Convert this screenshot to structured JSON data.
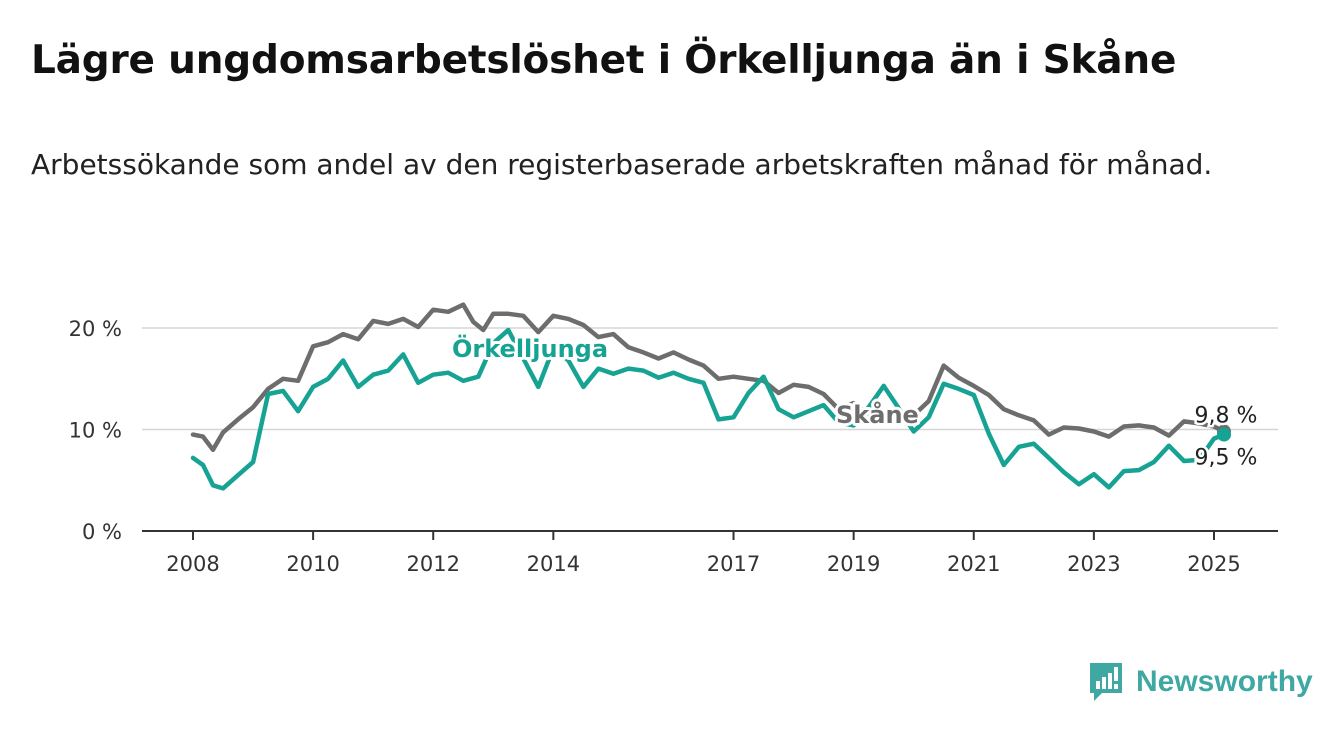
{
  "title": "Lägre ungdomsarbetslöshet i Örkelljunga än i Skåne",
  "subtitle": "Arbetssökande som andel av den registerbaserade arbetskraften månad för månad.",
  "brand": {
    "name": "Newsworthy",
    "icon": "newsworthy-logo-icon",
    "color": "#3fa8a3"
  },
  "chart_data": {
    "type": "line",
    "x_ticks": [
      "2008",
      "2010",
      "2012",
      "2014",
      "2017",
      "2019",
      "2021",
      "2023",
      "2025"
    ],
    "y_ticks": [
      "0 %",
      "10 %",
      "20 %"
    ],
    "ylim": [
      0,
      20
    ],
    "grid": true,
    "series": [
      {
        "name": "Skåne",
        "color": "#6d6d6d",
        "end_label": "9,8 %",
        "points": [
          [
            "2008-01",
            9.5
          ],
          [
            "2008-03",
            9.3
          ],
          [
            "2008-05",
            8.0
          ],
          [
            "2008-07",
            9.7
          ],
          [
            "2008-10",
            11.0
          ],
          [
            "2009-01",
            12.2
          ],
          [
            "2009-04",
            14.0
          ],
          [
            "2009-07",
            15.0
          ],
          [
            "2009-10",
            14.8
          ],
          [
            "2010-01",
            18.2
          ],
          [
            "2010-04",
            18.6
          ],
          [
            "2010-07",
            19.4
          ],
          [
            "2010-10",
            18.9
          ],
          [
            "2011-01",
            20.7
          ],
          [
            "2011-04",
            20.4
          ],
          [
            "2011-07",
            20.9
          ],
          [
            "2011-10",
            20.1
          ],
          [
            "2012-01",
            21.8
          ],
          [
            "2012-04",
            21.6
          ],
          [
            "2012-07",
            22.3
          ],
          [
            "2012-09",
            20.6
          ],
          [
            "2012-11",
            19.8
          ],
          [
            "2013-01",
            21.4
          ],
          [
            "2013-04",
            21.4
          ],
          [
            "2013-07",
            21.2
          ],
          [
            "2013-10",
            19.6
          ],
          [
            "2014-01",
            21.2
          ],
          [
            "2014-04",
            20.9
          ],
          [
            "2014-07",
            20.3
          ],
          [
            "2014-10",
            19.1
          ],
          [
            "2015-01",
            19.4
          ],
          [
            "2015-04",
            18.1
          ],
          [
            "2015-07",
            17.6
          ],
          [
            "2015-10",
            17.0
          ],
          [
            "2016-01",
            17.6
          ],
          [
            "2016-04",
            16.9
          ],
          [
            "2016-07",
            16.3
          ],
          [
            "2016-10",
            15.0
          ],
          [
            "2017-01",
            15.2
          ],
          [
            "2017-04",
            15.0
          ],
          [
            "2017-07",
            14.8
          ],
          [
            "2017-10",
            13.6
          ],
          [
            "2018-01",
            14.4
          ],
          [
            "2018-04",
            14.2
          ],
          [
            "2018-07",
            13.5
          ],
          [
            "2018-10",
            12.0
          ],
          [
            "2019-01",
            12.6
          ],
          [
            "2019-04",
            11.5
          ],
          [
            "2019-07",
            10.7
          ],
          [
            "2019-10",
            10.8
          ],
          [
            "2020-01",
            11.4
          ],
          [
            "2020-04",
            12.8
          ],
          [
            "2020-07",
            16.3
          ],
          [
            "2020-10",
            15.1
          ],
          [
            "2021-01",
            14.3
          ],
          [
            "2021-04",
            13.4
          ],
          [
            "2021-07",
            12.0
          ],
          [
            "2021-10",
            11.4
          ],
          [
            "2022-01",
            10.9
          ],
          [
            "2022-04",
            9.5
          ],
          [
            "2022-07",
            10.2
          ],
          [
            "2022-10",
            10.1
          ],
          [
            "2023-01",
            9.8
          ],
          [
            "2023-04",
            9.3
          ],
          [
            "2023-07",
            10.3
          ],
          [
            "2023-10",
            10.4
          ],
          [
            "2024-01",
            10.2
          ],
          [
            "2024-04",
            9.4
          ],
          [
            "2024-07",
            10.8
          ],
          [
            "2024-10",
            10.6
          ],
          [
            "2025-01",
            10.3
          ],
          [
            "2025-03",
            9.8
          ]
        ]
      },
      {
        "name": "Örkelljunga",
        "color": "#17a394",
        "end_label": "9,5 %",
        "points": [
          [
            "2008-01",
            7.2
          ],
          [
            "2008-03",
            6.5
          ],
          [
            "2008-05",
            4.5
          ],
          [
            "2008-07",
            4.2
          ],
          [
            "2008-10",
            5.5
          ],
          [
            "2009-01",
            6.8
          ],
          [
            "2009-04",
            13.5
          ],
          [
            "2009-07",
            13.8
          ],
          [
            "2009-10",
            11.8
          ],
          [
            "2010-01",
            14.2
          ],
          [
            "2010-04",
            15.0
          ],
          [
            "2010-07",
            16.8
          ],
          [
            "2010-10",
            14.2
          ],
          [
            "2011-01",
            15.4
          ],
          [
            "2011-04",
            15.8
          ],
          [
            "2011-07",
            17.4
          ],
          [
            "2011-10",
            14.6
          ],
          [
            "2012-01",
            15.4
          ],
          [
            "2012-04",
            15.6
          ],
          [
            "2012-07",
            14.8
          ],
          [
            "2012-10",
            15.2
          ],
          [
            "2013-01",
            18.5
          ],
          [
            "2013-04",
            19.8
          ],
          [
            "2013-07",
            17.0
          ],
          [
            "2013-10",
            14.2
          ],
          [
            "2014-01",
            18.0
          ],
          [
            "2014-04",
            16.8
          ],
          [
            "2014-07",
            14.2
          ],
          [
            "2014-10",
            16.0
          ],
          [
            "2015-01",
            15.5
          ],
          [
            "2015-04",
            16.0
          ],
          [
            "2015-07",
            15.8
          ],
          [
            "2015-10",
            15.1
          ],
          [
            "2016-01",
            15.6
          ],
          [
            "2016-04",
            15.0
          ],
          [
            "2016-07",
            14.6
          ],
          [
            "2016-10",
            11.0
          ],
          [
            "2017-01",
            11.2
          ],
          [
            "2017-04",
            13.6
          ],
          [
            "2017-07",
            15.2
          ],
          [
            "2017-10",
            12.0
          ],
          [
            "2018-01",
            11.2
          ],
          [
            "2018-04",
            11.8
          ],
          [
            "2018-07",
            12.4
          ],
          [
            "2018-10",
            10.7
          ],
          [
            "2019-01",
            10.4
          ],
          [
            "2019-04",
            12.2
          ],
          [
            "2019-07",
            14.3
          ],
          [
            "2019-10",
            12.1
          ],
          [
            "2020-01",
            9.8
          ],
          [
            "2020-04",
            11.2
          ],
          [
            "2020-07",
            14.5
          ],
          [
            "2020-10",
            14.0
          ],
          [
            "2021-01",
            13.4
          ],
          [
            "2021-04",
            9.6
          ],
          [
            "2021-07",
            6.5
          ],
          [
            "2021-10",
            8.3
          ],
          [
            "2022-01",
            8.6
          ],
          [
            "2022-04",
            7.2
          ],
          [
            "2022-07",
            5.8
          ],
          [
            "2022-10",
            4.6
          ],
          [
            "2023-01",
            5.6
          ],
          [
            "2023-04",
            4.3
          ],
          [
            "2023-07",
            5.9
          ],
          [
            "2023-10",
            6.0
          ],
          [
            "2024-01",
            6.8
          ],
          [
            "2024-04",
            8.4
          ],
          [
            "2024-07",
            6.9
          ],
          [
            "2024-10",
            7.0
          ],
          [
            "2025-01",
            9.1
          ],
          [
            "2025-03",
            9.5
          ]
        ]
      }
    ]
  }
}
